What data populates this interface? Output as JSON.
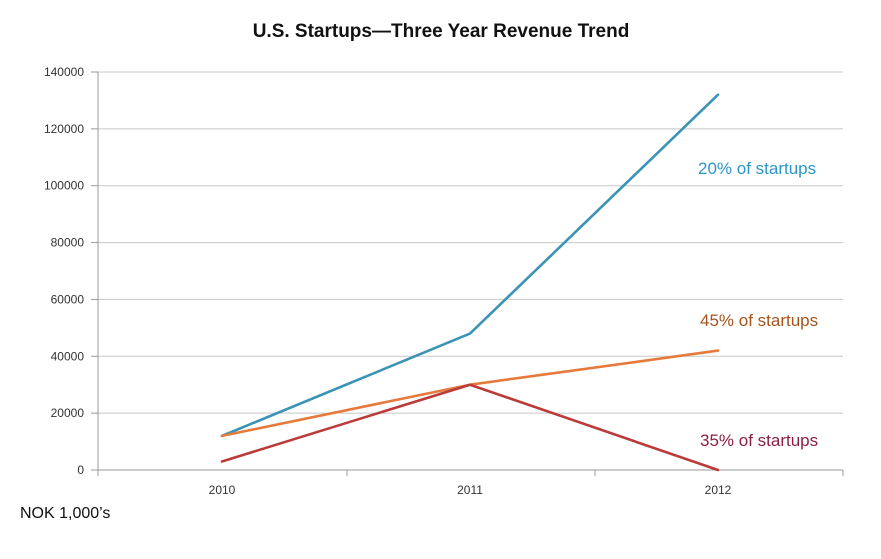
{
  "chart_data": {
    "type": "line",
    "title": "U.S. Startups—Three Year Revenue Trend",
    "unit_note": "NOK 1,000’s",
    "categories": [
      "2010",
      "2011",
      "2012"
    ],
    "ylim": [
      0,
      140000
    ],
    "yticks": [
      "0",
      "20000",
      "40000",
      "60000",
      "80000",
      "100000",
      "120000",
      "140000"
    ],
    "grid": true,
    "series": [
      {
        "name": "20% of startups",
        "values": [
          12000,
          48000,
          132000
        ],
        "color": "#3b93b5",
        "label_color": "#2c95c9"
      },
      {
        "name": "45% of startups",
        "values": [
          12000,
          30000,
          42000
        ],
        "color": "#e57a3c",
        "label_color": "#a5541c"
      },
      {
        "name": "35% of startups",
        "values": [
          3000,
          30000,
          0
        ],
        "color": "#bb3b3b",
        "label_color": "#8a1f46"
      }
    ]
  }
}
